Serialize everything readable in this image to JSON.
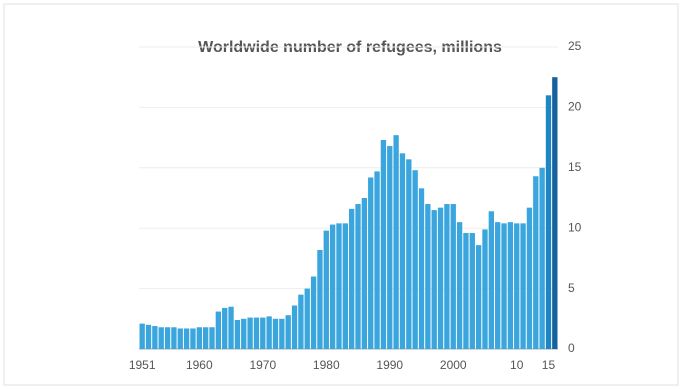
{
  "chart_data": {
    "type": "bar",
    "title": "Worldwide number of refugees, millions",
    "categories": [
      "1951",
      null,
      null,
      null,
      null,
      null,
      null,
      null,
      null,
      "1960",
      null,
      null,
      null,
      null,
      null,
      null,
      null,
      null,
      null,
      "1970",
      null,
      null,
      null,
      null,
      null,
      null,
      null,
      null,
      null,
      "1980",
      null,
      null,
      null,
      null,
      null,
      null,
      null,
      null,
      null,
      "1990",
      null,
      null,
      null,
      null,
      null,
      null,
      null,
      null,
      null,
      "2000",
      null,
      null,
      null,
      null,
      null,
      null,
      null,
      null,
      null,
      "10",
      null,
      null,
      null,
      null,
      "15",
      null
    ],
    "values": [
      2.1,
      2.0,
      1.9,
      1.8,
      1.8,
      1.8,
      1.7,
      1.7,
      1.7,
      1.8,
      1.8,
      1.8,
      3.1,
      3.4,
      3.5,
      2.4,
      2.5,
      2.6,
      2.6,
      2.6,
      2.7,
      2.5,
      2.5,
      2.8,
      3.6,
      4.5,
      5.0,
      6.0,
      8.2,
      9.8,
      10.3,
      10.4,
      10.4,
      11.6,
      12.0,
      12.5,
      14.2,
      14.7,
      17.3,
      16.8,
      17.7,
      16.2,
      15.7,
      14.8,
      13.3,
      12.0,
      11.5,
      11.7,
      12.0,
      12.0,
      10.5,
      9.6,
      9.6,
      8.6,
      9.9,
      11.4,
      10.5,
      10.4,
      10.5,
      10.4,
      10.4,
      11.7,
      14.3,
      15.0,
      21.0,
      22.5
    ],
    "colors": [
      "#3aa6dd",
      "#3aa6dd",
      "#3aa6dd",
      "#3aa6dd",
      "#3aa6dd",
      "#3aa6dd",
      "#3aa6dd",
      "#3aa6dd",
      "#3aa6dd",
      "#3aa6dd",
      "#3aa6dd",
      "#3aa6dd",
      "#3aa6dd",
      "#3aa6dd",
      "#3aa6dd",
      "#3aa6dd",
      "#3aa6dd",
      "#3aa6dd",
      "#3aa6dd",
      "#3aa6dd",
      "#3aa6dd",
      "#3aa6dd",
      "#3aa6dd",
      "#3aa6dd",
      "#3aa6dd",
      "#3aa6dd",
      "#3aa6dd",
      "#3aa6dd",
      "#3aa6dd",
      "#3aa6dd",
      "#3aa6dd",
      "#3aa6dd",
      "#3aa6dd",
      "#3aa6dd",
      "#3aa6dd",
      "#3aa6dd",
      "#3aa6dd",
      "#3aa6dd",
      "#3aa6dd",
      "#3aa6dd",
      "#3aa6dd",
      "#3aa6dd",
      "#3aa6dd",
      "#3aa6dd",
      "#3aa6dd",
      "#3aa6dd",
      "#3aa6dd",
      "#3aa6dd",
      "#3aa6dd",
      "#3aa6dd",
      "#3aa6dd",
      "#3aa6dd",
      "#3aa6dd",
      "#3aa6dd",
      "#3aa6dd",
      "#3aa6dd",
      "#3aa6dd",
      "#3aa6dd",
      "#3aa6dd",
      "#3aa6dd",
      "#3aa6dd",
      "#3aa6dd",
      "#3aa6dd",
      "#3aa6dd",
      "#1f86c6",
      "#15629e"
    ],
    "ylim": [
      0,
      25
    ],
    "yticks": [
      0,
      5,
      10,
      15,
      20,
      25
    ],
    "grid": true
  }
}
